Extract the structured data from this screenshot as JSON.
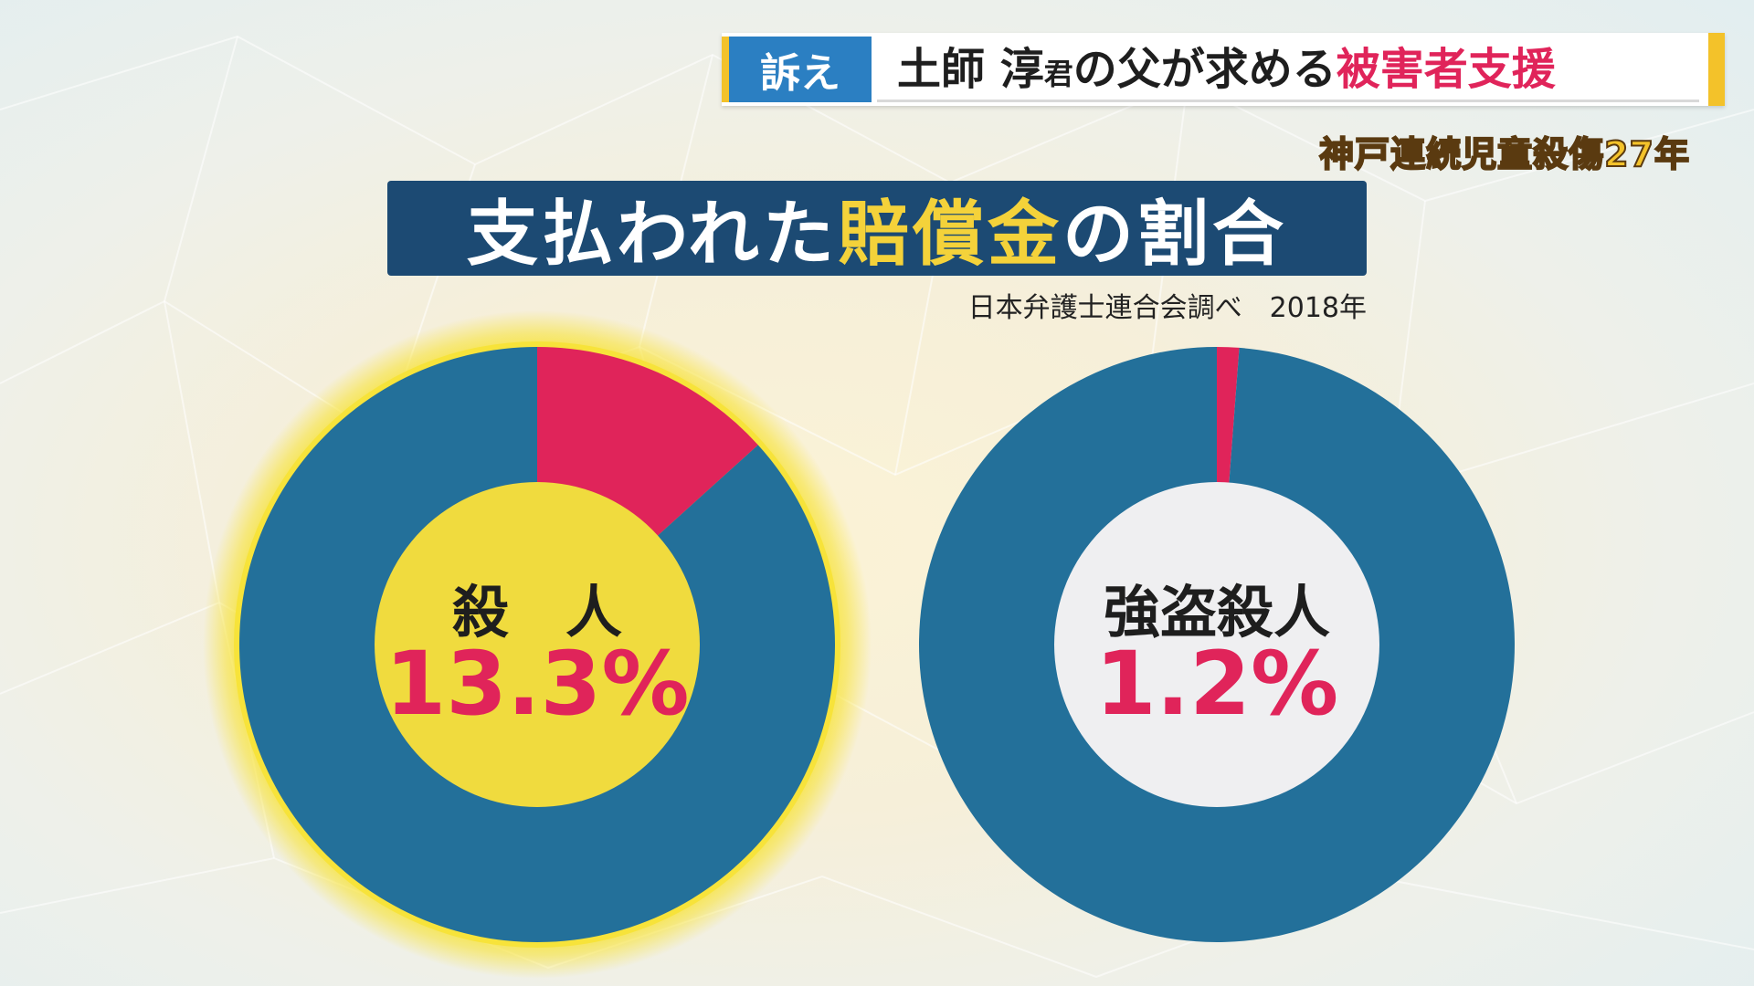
{
  "banner": {
    "tag": "訴え",
    "title_part1": "土師 淳",
    "title_honorific": "君",
    "title_part2": "の父が求める",
    "title_highlight": "被害者支援"
  },
  "subtitle": "神戸連続児童殺傷27年",
  "main_title": {
    "part1": "支払われた",
    "highlight": "賠償金",
    "part2": "の割合"
  },
  "source": "日本弁護士連合会調べ　2018年",
  "colors": {
    "ring": "#23709a",
    "paid": "#e0245a",
    "center_highlight": "#f0db3e",
    "center_plain": "#efeff1",
    "glow": "#f7e33a",
    "title_bg": "#1c4a73"
  },
  "chart_data": [
    {
      "type": "pie",
      "center_label": "殺　人",
      "value_label": "13.3%",
      "values": [
        13.3,
        86.7
      ],
      "highlighted": true
    },
    {
      "type": "pie",
      "center_label": "強盗殺人",
      "value_label": "1.2%",
      "values": [
        1.2,
        98.8
      ],
      "highlighted": false
    }
  ]
}
